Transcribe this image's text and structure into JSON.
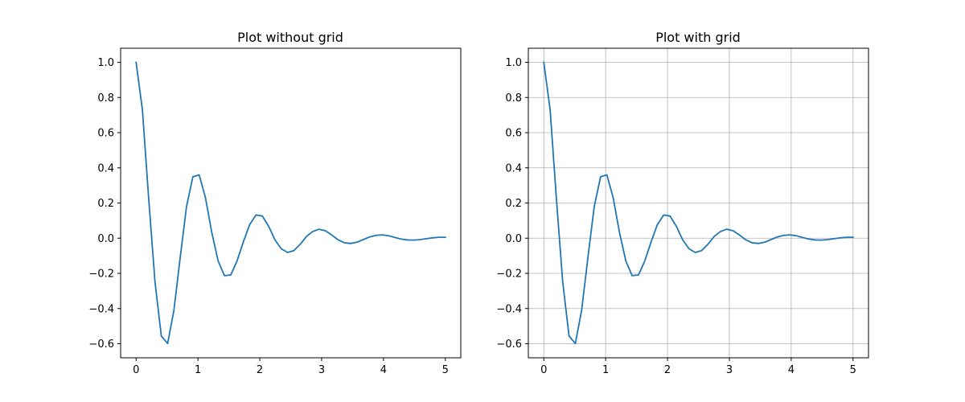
{
  "chart_data": [
    {
      "type": "line",
      "title": "Plot without grid",
      "xlabel": "",
      "ylabel": "",
      "xlim": [
        -0.25,
        5.25
      ],
      "ylim": [
        -0.68,
        1.08
      ],
      "x_ticks": [
        0,
        1,
        2,
        3,
        4,
        5
      ],
      "x_tick_labels": [
        "0",
        "1",
        "2",
        "3",
        "4",
        "5"
      ],
      "y_ticks": [
        -0.6,
        -0.4,
        -0.2,
        0.0,
        0.2,
        0.4,
        0.6,
        0.8,
        1.0
      ],
      "y_tick_labels": [
        "−0.6",
        "−0.4",
        "−0.2",
        "0.0",
        "0.2",
        "0.4",
        "0.6",
        "0.8",
        "1.0"
      ],
      "grid": false,
      "color": "#1f77b4",
      "series": [
        {
          "x": [
            0.0,
            0.102,
            0.204,
            0.306,
            0.408,
            0.51,
            0.612,
            0.714,
            0.816,
            0.918,
            1.02,
            1.122,
            1.224,
            1.327,
            1.429,
            1.531,
            1.633,
            1.735,
            1.837,
            1.939,
            2.041,
            2.143,
            2.245,
            2.347,
            2.449,
            2.551,
            2.653,
            2.755,
            2.857,
            2.959,
            3.061,
            3.163,
            3.265,
            3.367,
            3.469,
            3.571,
            3.673,
            3.776,
            3.878,
            3.98,
            4.082,
            4.184,
            4.286,
            4.388,
            4.49,
            4.592,
            4.694,
            4.796,
            4.898,
            5.0
          ],
          "y": [
            1.0,
            0.731,
            0.224,
            -0.249,
            -0.556,
            -0.599,
            -0.409,
            -0.108,
            0.181,
            0.349,
            0.36,
            0.23,
            0.032,
            -0.13,
            -0.213,
            -0.209,
            -0.129,
            -0.021,
            0.078,
            0.132,
            0.126,
            0.068,
            -0.009,
            -0.06,
            -0.081,
            -0.071,
            -0.035,
            0.01,
            0.038,
            0.051,
            0.042,
            0.018,
            -0.009,
            -0.026,
            -0.03,
            -0.023,
            -0.008,
            0.007,
            0.016,
            0.019,
            0.014,
            0.004,
            -0.005,
            -0.01,
            -0.011,
            -0.008,
            -0.003,
            0.002,
            0.005,
            0.005
          ]
        }
      ]
    },
    {
      "type": "line",
      "title": "Plot with grid",
      "xlabel": "",
      "ylabel": "",
      "xlim": [
        -0.25,
        5.25
      ],
      "ylim": [
        -0.68,
        1.08
      ],
      "x_ticks": [
        0,
        1,
        2,
        3,
        4,
        5
      ],
      "x_tick_labels": [
        "0",
        "1",
        "2",
        "3",
        "4",
        "5"
      ],
      "y_ticks": [
        -0.6,
        -0.4,
        -0.2,
        0.0,
        0.2,
        0.4,
        0.6,
        0.8,
        1.0
      ],
      "y_tick_labels": [
        "−0.6",
        "−0.4",
        "−0.2",
        "0.0",
        "0.2",
        "0.4",
        "0.6",
        "0.8",
        "1.0"
      ],
      "grid": true,
      "grid_color": "#b0b0b0",
      "color": "#1f77b4",
      "series": [
        {
          "x": [
            0.0,
            0.102,
            0.204,
            0.306,
            0.408,
            0.51,
            0.612,
            0.714,
            0.816,
            0.918,
            1.02,
            1.122,
            1.224,
            1.327,
            1.429,
            1.531,
            1.633,
            1.735,
            1.837,
            1.939,
            2.041,
            2.143,
            2.245,
            2.347,
            2.449,
            2.551,
            2.653,
            2.755,
            2.857,
            2.959,
            3.061,
            3.163,
            3.265,
            3.367,
            3.469,
            3.571,
            3.673,
            3.776,
            3.878,
            3.98,
            4.082,
            4.184,
            4.286,
            4.388,
            4.49,
            4.592,
            4.694,
            4.796,
            4.898,
            5.0
          ],
          "y": [
            1.0,
            0.731,
            0.224,
            -0.249,
            -0.556,
            -0.599,
            -0.409,
            -0.108,
            0.181,
            0.349,
            0.36,
            0.23,
            0.032,
            -0.13,
            -0.213,
            -0.209,
            -0.129,
            -0.021,
            0.078,
            0.132,
            0.126,
            0.068,
            -0.009,
            -0.06,
            -0.081,
            -0.071,
            -0.035,
            0.01,
            0.038,
            0.051,
            0.042,
            0.018,
            -0.009,
            -0.026,
            -0.03,
            -0.023,
            -0.008,
            0.007,
            0.016,
            0.019,
            0.014,
            0.004,
            -0.005,
            -0.01,
            -0.011,
            -0.008,
            -0.003,
            0.002,
            0.005,
            0.005
          ]
        }
      ]
    }
  ]
}
